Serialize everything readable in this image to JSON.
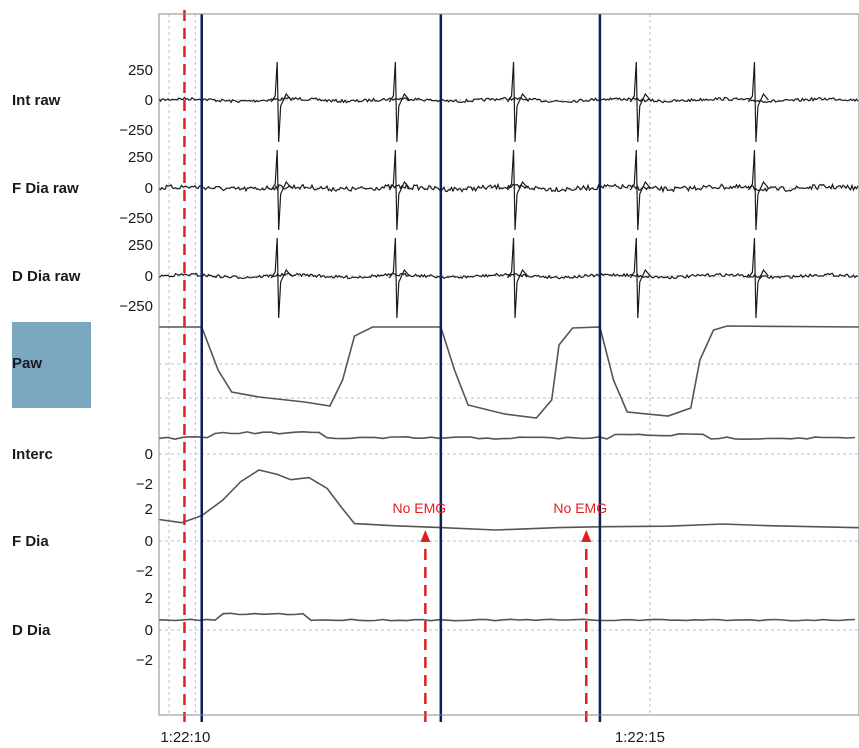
{
  "colors": {
    "trace": "#555555",
    "raw_trace": "#1a1a1a",
    "marker_dashed": "#e02020",
    "marker_solid": "#0b1d5a",
    "highlight_box": "#7ba7c0",
    "grid": "#a8c8d8",
    "frame": "#888888"
  },
  "chart_data": {
    "type": "line",
    "x_ticks": [
      {
        "label": "1:22:10",
        "t": 10
      },
      {
        "label": "1:22:15",
        "t": 15
      }
    ],
    "xlim": [
      9.6,
      17.3
    ],
    "cardiac_beats_t": [
      10.9,
      12.2,
      13.5,
      14.85,
      16.15
    ],
    "breath_boundaries_t": [
      10.0,
      10.27,
      13.05,
      14.75
    ],
    "channels": [
      {
        "name": "Int raw",
        "ticks": [
          "250",
          "0",
          "−250"
        ],
        "kind": "raw"
      },
      {
        "name": "F Dia raw",
        "ticks": [
          "250",
          "0",
          "−250"
        ],
        "kind": "raw"
      },
      {
        "name": "D Dia raw",
        "ticks": [
          "250",
          "0",
          "−250"
        ],
        "kind": "raw"
      },
      {
        "name": "Paw",
        "ticks": [],
        "kind": "pressure",
        "highlighted": true
      },
      {
        "name": "Interc",
        "ticks": [
          "0",
          "−2"
        ],
        "kind": "envelope"
      },
      {
        "name": "F Dia",
        "ticks": [
          "2",
          "0",
          "−2"
        ],
        "kind": "envelope"
      },
      {
        "name": "D Dia",
        "ticks": [
          "2",
          "0",
          "−2"
        ],
        "kind": "envelope"
      }
    ],
    "markers": [
      {
        "type": "dashed",
        "t": 9.88
      },
      {
        "type": "solid",
        "t": 10.07
      },
      {
        "type": "solid",
        "t": 12.7
      },
      {
        "type": "solid",
        "t": 14.45
      },
      {
        "type": "dashed-arrow",
        "t": 12.53,
        "label": "No EMG"
      },
      {
        "type": "dashed-arrow",
        "t": 14.3,
        "label": "No EMG"
      }
    ]
  }
}
